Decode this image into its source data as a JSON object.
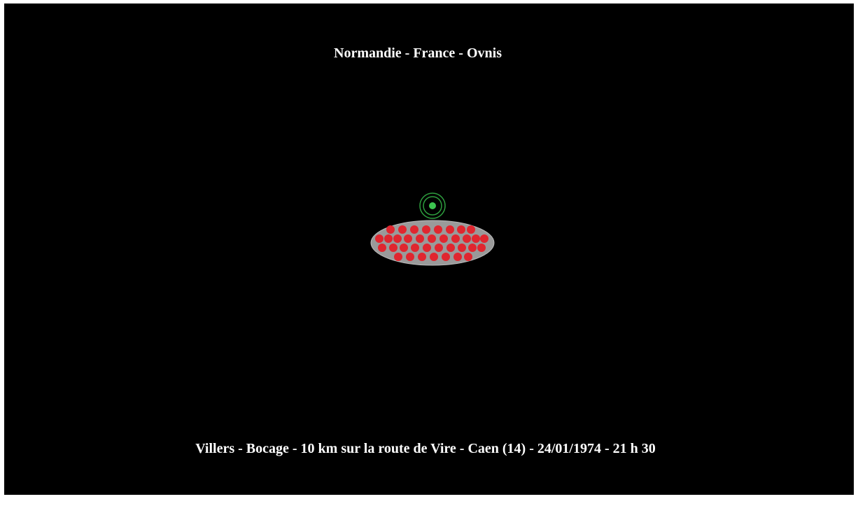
{
  "title": "Normandie - France - Ovnis",
  "caption": "Villers - Bocage - 10 km sur la route de Vire - Caen (14) - 24/01/1974 - 21 h 30"
}
